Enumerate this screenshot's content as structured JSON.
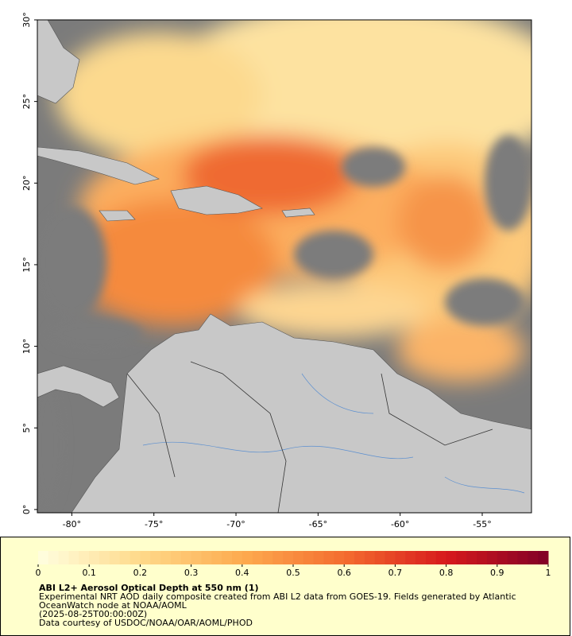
{
  "map": {
    "xlim": [
      -82.1,
      -52.0
    ],
    "ylim": [
      -0.2,
      30
    ],
    "xticks": [
      {
        "value": -80,
        "label": "-80°"
      },
      {
        "value": -75,
        "label": "-75°"
      },
      {
        "value": -70,
        "label": "-70°"
      },
      {
        "value": -65,
        "label": "-65°"
      },
      {
        "value": -60,
        "label": "-60°"
      },
      {
        "value": -55,
        "label": "-55°"
      }
    ],
    "yticks": [
      {
        "value": 0,
        "label": "0°"
      },
      {
        "value": 5,
        "label": "5°"
      },
      {
        "value": 10,
        "label": "10°"
      },
      {
        "value": 15,
        "label": "15°"
      },
      {
        "value": 20,
        "label": "20°"
      },
      {
        "value": 25,
        "label": "25°"
      },
      {
        "value": 30,
        "label": "30°"
      }
    ]
  },
  "colorbar": {
    "range": [
      0,
      1
    ],
    "steps": 50,
    "colors": [
      "#ffffe0",
      "#fed98a",
      "#fdab4f",
      "#f46d2f",
      "#d7191c",
      "#800026"
    ],
    "ticks": [
      0,
      0.1,
      0.2,
      0.3,
      0.4,
      0.5,
      0.6,
      0.7,
      0.8,
      0.9,
      1
    ]
  },
  "legend": {
    "title": "ABI L2+ Aerosol Optical Depth at 550 nm (1)",
    "description": "Experimental NRT AOD daily composite created from ABI L2 data from GOES-19. Fields generated by Atlantic OceanWatch node at NOAA/AOML",
    "timestamp": "(2025-08-25T00:00:00Z)",
    "credit": "Data courtesy of USDOC/NOAA/OAR/AOML/PHOD"
  }
}
